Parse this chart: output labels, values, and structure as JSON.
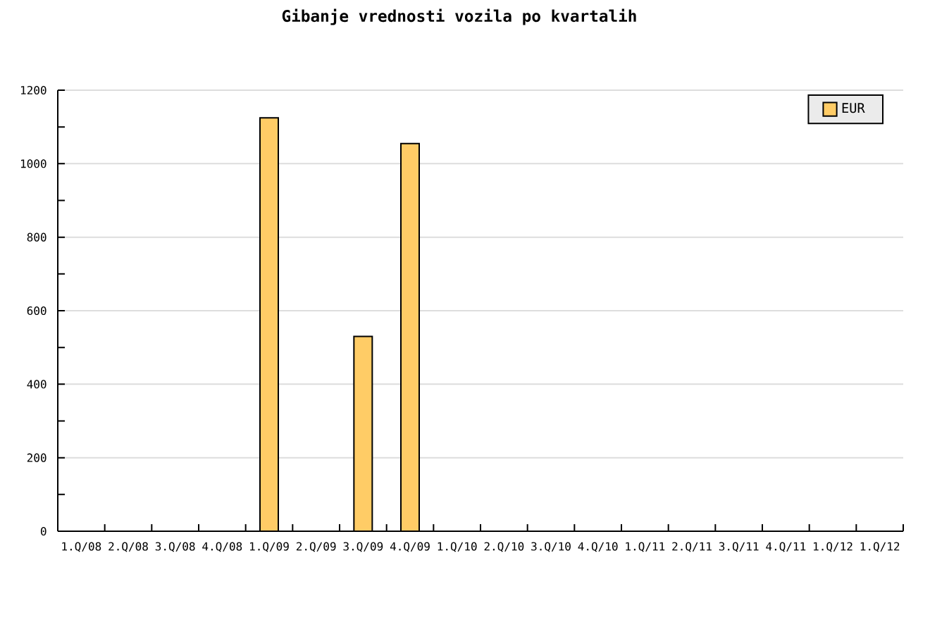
{
  "chart_data": {
    "type": "bar",
    "title": "Gibanje vrednosti vozila po kvartalih",
    "categories": [
      "1.Q/08",
      "2.Q/08",
      "3.Q/08",
      "4.Q/08",
      "1.Q/09",
      "2.Q/09",
      "3.Q/09",
      "4.Q/09",
      "1.Q/10",
      "2.Q/10",
      "3.Q/10",
      "4.Q/10",
      "1.Q/11",
      "2.Q/11",
      "3.Q/11",
      "4.Q/11",
      "1.Q/12",
      "1.Q/12"
    ],
    "series": [
      {
        "name": "EUR",
        "color": "#ffcc66",
        "values": [
          null,
          null,
          null,
          null,
          1125,
          null,
          530,
          1055,
          null,
          null,
          null,
          null,
          null,
          null,
          null,
          null,
          null,
          null
        ]
      }
    ],
    "ylim": [
      0,
      1200
    ],
    "yticks": [
      0,
      200,
      400,
      600,
      800,
      1000,
      1200
    ],
    "grid": "y",
    "legend": "top right"
  }
}
